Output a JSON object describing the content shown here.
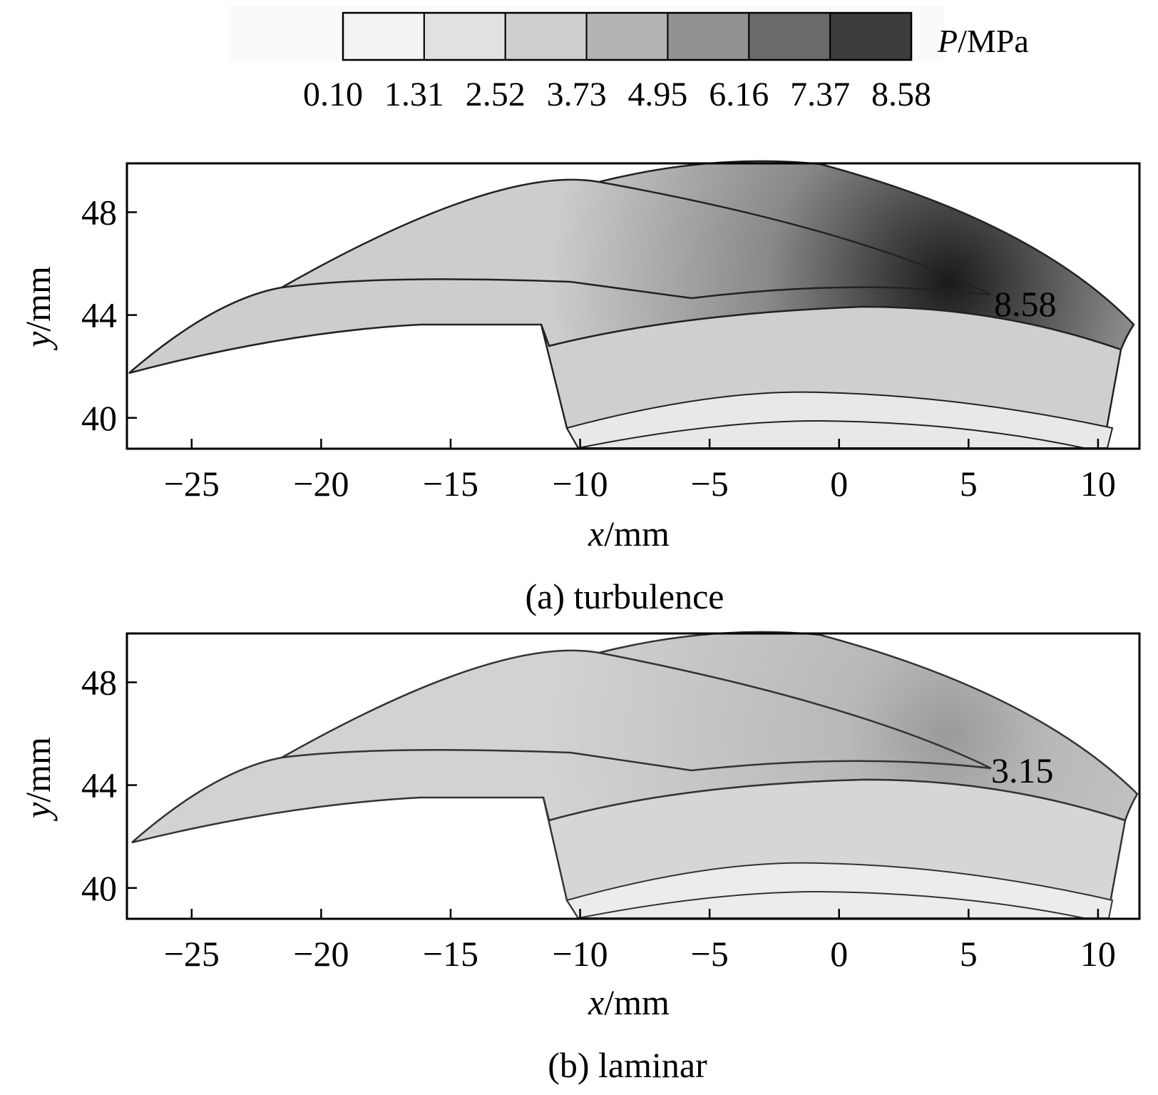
{
  "colorbar": {
    "label_var": "P",
    "label_unit": "/MPa",
    "ticks": [
      "0.10",
      "1.31",
      "2.52",
      "3.73",
      "4.95",
      "6.16",
      "7.37",
      "8.58"
    ],
    "colors": [
      "#f3f3f3",
      "#e1e1e1",
      "#cecece",
      "#b4b4b4",
      "#929292",
      "#6a6a6a",
      "#3c3c3c"
    ]
  },
  "chart_data": [
    {
      "type": "heatmap",
      "caption": "(a) turbulence",
      "xlabel_var": "x",
      "xlabel_unit": "/mm",
      "ylabel_var": "y",
      "ylabel_unit": "/mm",
      "xlim": [
        -27.5,
        11.6
      ],
      "ylim": [
        38.8,
        49.9
      ],
      "xticks": [
        -25,
        -20,
        -15,
        -10,
        -5,
        0,
        5,
        10
      ],
      "yticks": [
        40,
        44,
        48
      ],
      "peak_label": "8.58",
      "peak_point": [
        6.0,
        44.7
      ],
      "gradient_strength": 1.0
    },
    {
      "type": "heatmap",
      "caption": "(b) laminar",
      "xlabel_var": "x",
      "xlabel_unit": "/mm",
      "ylabel_var": "y",
      "ylabel_unit": "/mm",
      "xlim": [
        -27.5,
        11.6
      ],
      "ylim": [
        38.8,
        49.9
      ],
      "xticks": [
        -25,
        -20,
        -15,
        -10,
        -5,
        0,
        5,
        10
      ],
      "yticks": [
        40,
        44,
        48
      ],
      "peak_label": "3.15",
      "peak_point": [
        6.0,
        44.7
      ],
      "gradient_strength": 0.35
    }
  ]
}
